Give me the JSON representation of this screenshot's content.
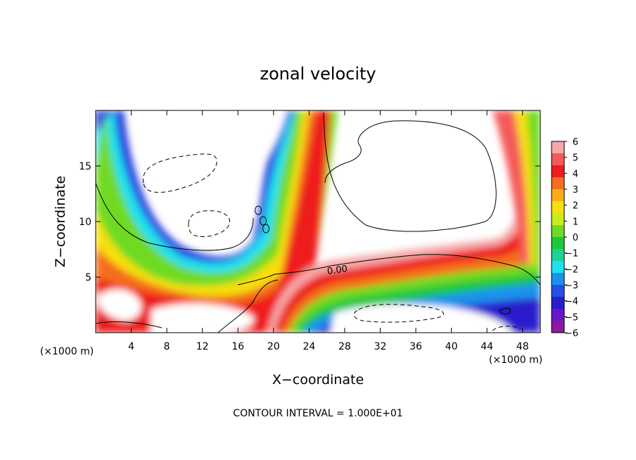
{
  "chart_data": {
    "type": "contour",
    "title": "zonal velocity",
    "xlabel": "X−coordinate",
    "ylabel": "Z−coordinate",
    "x_unit_left": "(×1000 m)",
    "x_unit_right": "(×1000 m)",
    "footer": "CONTOUR INTERVAL = 1.000E+01",
    "contour_label": "0.00",
    "xlim": [
      0,
      50
    ],
    "ylim": [
      0,
      20
    ],
    "x_ticks": [
      4,
      8,
      12,
      16,
      20,
      24,
      28,
      32,
      36,
      40,
      44,
      48
    ],
    "y_ticks": [
      5,
      10,
      15
    ],
    "colorbar": {
      "labels": [
        "6",
        "5",
        "4",
        "3",
        "2",
        "1",
        "0",
        "−1",
        "−2",
        "−3",
        "−4",
        "−5",
        "−6"
      ],
      "colors": [
        "#f7a7a7",
        "#f55a5a",
        "#ee1c1c",
        "#f56d1e",
        "#fbad18",
        "#f6df10",
        "#c9ec1a",
        "#6fda23",
        "#1ec83c",
        "#21cf9a",
        "#1ee1ee",
        "#1c92ee",
        "#2450e6",
        "#2a1ccc",
        "#6618c8",
        "#8c1aa0"
      ]
    }
  }
}
